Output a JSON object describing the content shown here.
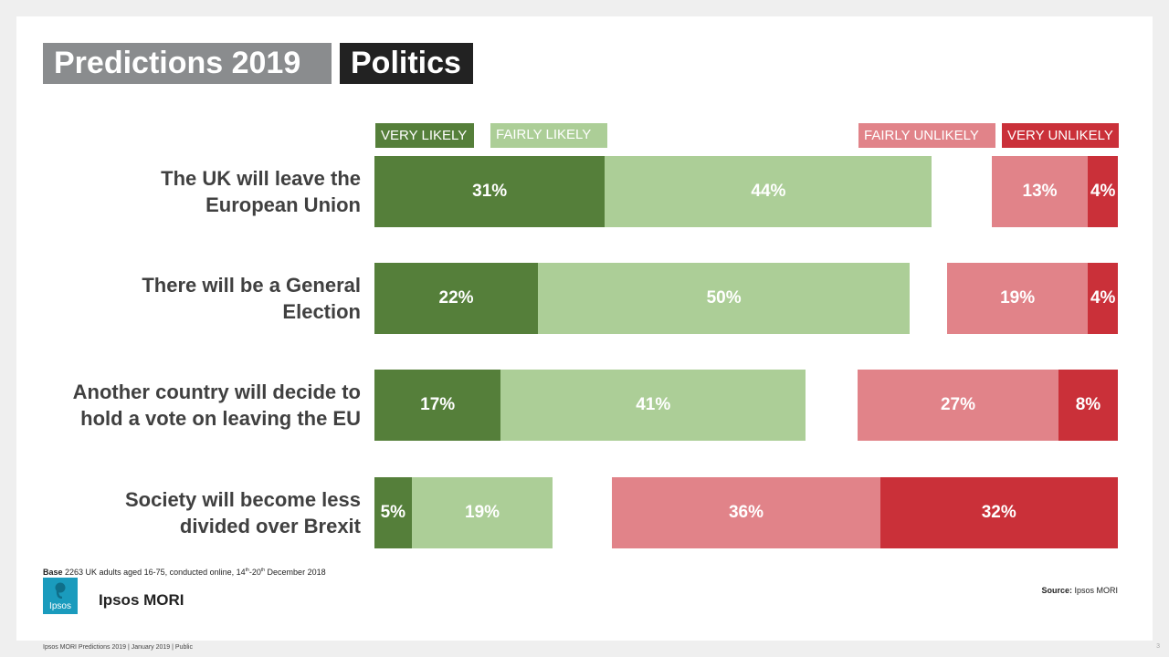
{
  "header": {
    "title": "Predictions 2019",
    "topic": "Politics"
  },
  "colors": {
    "very_likely": "#557f3a",
    "fairly_likely": "#acce97",
    "fairly_unlikely": "#e18389",
    "very_unlikely": "#ca3039"
  },
  "chart_data": {
    "type": "bar",
    "orientation": "horizontal-diverging",
    "legend": [
      "VERY LIKELY",
      "FAIRLY LIKELY",
      "FAIRLY UNLIKELY",
      "VERY UNLIKELY"
    ],
    "categories": [
      [
        "The UK will leave the",
        "European Union"
      ],
      [
        "There will be a General",
        "Election"
      ],
      [
        "Another country will decide to",
        "hold a vote on leaving the EU"
      ],
      [
        "Society will become less",
        "divided over Brexit"
      ]
    ],
    "series": [
      {
        "name": "VERY LIKELY",
        "values": [
          31,
          22,
          17,
          5
        ]
      },
      {
        "name": "FAIRLY LIKELY",
        "values": [
          44,
          50,
          41,
          19
        ]
      },
      {
        "name": "FAIRLY UNLIKELY",
        "values": [
          13,
          19,
          27,
          36
        ]
      },
      {
        "name": "VERY UNLIKELY",
        "values": [
          4,
          4,
          8,
          32
        ]
      }
    ],
    "value_suffix": "%"
  },
  "notes": {
    "base_label": "Base",
    "base_text": "2263 UK adults aged 16-75, conducted online, 14",
    "base_sup1": "th",
    "base_mid": "-20",
    "base_sup2": "th",
    "base_end": " December 2018",
    "source_label": "Source:",
    "source_text": "Ipsos MORI"
  },
  "branding": {
    "logo_text": "Ipsos",
    "brand_name": "Ipsos MORI"
  },
  "footer": {
    "text": "Ipsos MORI Predictions 2019 | January 2019 | Public",
    "page_number": "3"
  }
}
